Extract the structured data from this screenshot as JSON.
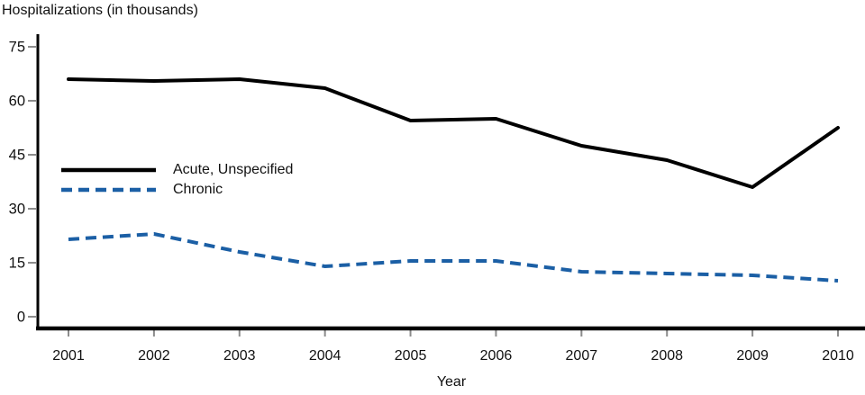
{
  "chart_data": {
    "type": "line",
    "title": "Hospitalizations (in thousands)",
    "xlabel": "Year",
    "ylabel": "",
    "x": [
      2001,
      2002,
      2003,
      2004,
      2005,
      2006,
      2007,
      2008,
      2009,
      2010
    ],
    "series": [
      {
        "name": "Acute, Unspecified",
        "color": "#000000",
        "line_style": "solid",
        "values": [
          66,
          65.5,
          66,
          63.5,
          54.5,
          55,
          47.5,
          43.5,
          36,
          52.5
        ]
      },
      {
        "name": "Chronic",
        "color": "#1b5fa5",
        "line_style": "dashed",
        "values": [
          21.5,
          23,
          18,
          14,
          15.5,
          15.5,
          12.5,
          12,
          11.5,
          10
        ]
      }
    ],
    "yticks": [
      0,
      15,
      30,
      45,
      60,
      75
    ],
    "ylim": [
      0,
      75
    ],
    "grid": false,
    "legend_position": "inside-left-middle"
  },
  "colors": {
    "axis": "#000000",
    "tick": "#8c8c8c",
    "text": "#111111",
    "chronic_blue": "#1b5fa5"
  }
}
